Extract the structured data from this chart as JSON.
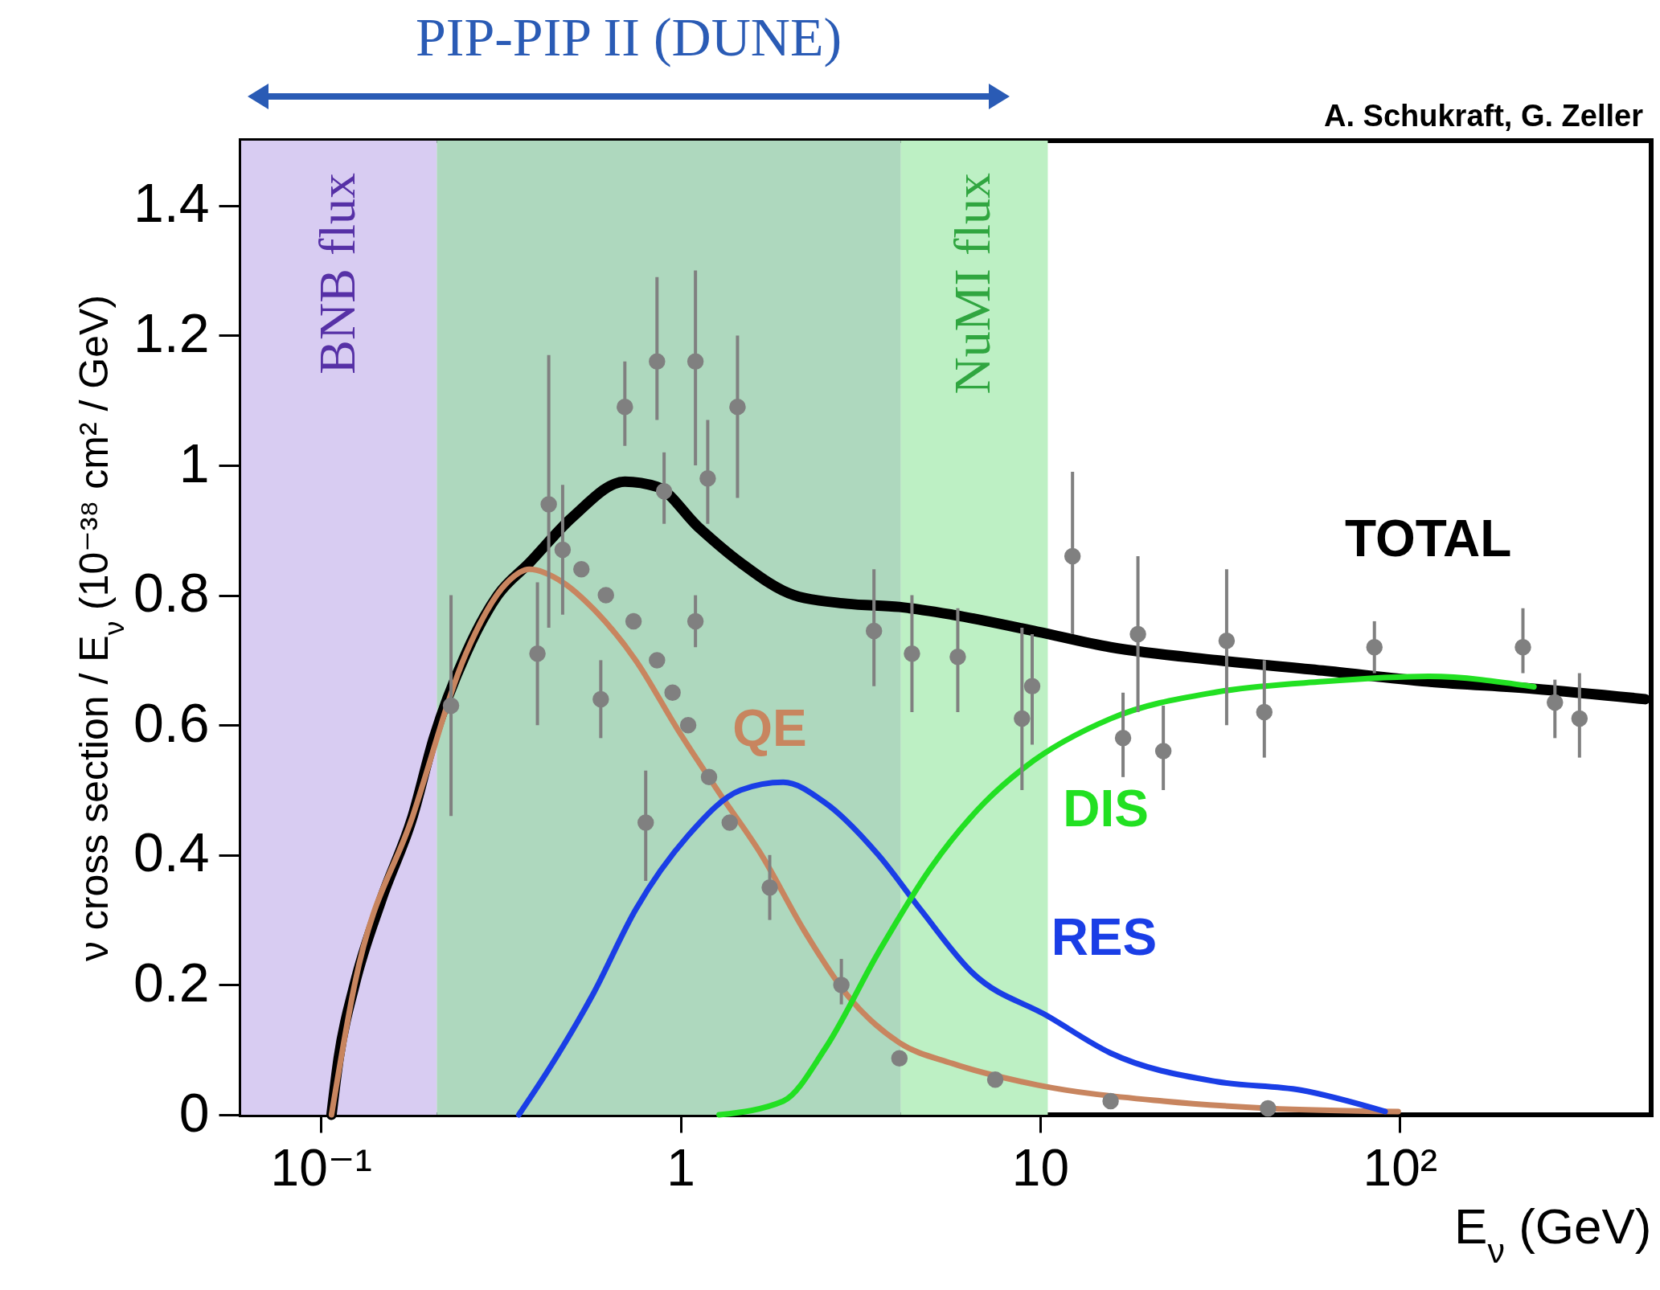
{
  "chart_data": {
    "type": "line",
    "xlabel": "E$_{ν}$ (GeV)",
    "ylabel": "ν cross section / E$_{ν}$ (10⁻³⁸ cm² / GeV)",
    "log": "x",
    "xlim": [
      0.06,
      500
    ],
    "xticks": [
      {
        "value": 0.1,
        "label": "10⁻¹"
      },
      1,
      10,
      {
        "value": 100,
        "label": "10²"
      }
    ],
    "ylim": [
      0,
      1.5
    ],
    "yticks": [
      0,
      0.2,
      0.4,
      0.6,
      0.8,
      1,
      1.2,
      1.4
    ],
    "annotations": [
      "A. Schukraft, G. Zeller",
      "PIP-PIP II (DUNE)"
    ],
    "bands": [
      {
        "axis": "x",
        "from": 0.06,
        "to": 0.21,
        "label": "BNB flux",
        "color": "#d8ccf2"
      },
      {
        "axis": "x",
        "from": 0.21,
        "to": 4.1,
        "label": null,
        "color": "#aed8be"
      },
      {
        "axis": "x",
        "from": 4.1,
        "to": 10.5,
        "label": "NuMI flux",
        "color": "#bdf0c4"
      }
    ],
    "series": [
      {
        "name": "TOTAL",
        "color": "#000000",
        "x": [
          0.107,
          0.112,
          0.124,
          0.147,
          0.18,
          0.206,
          0.253,
          0.31,
          0.38,
          0.5,
          0.7,
          0.86,
          1.12,
          1.47,
          2.07,
          2.9,
          4.06,
          5.7,
          9.8,
          15.7,
          31,
          61,
          120,
          236,
          481
        ],
        "values": [
          0,
          0.087,
          0.2,
          0.33,
          0.46,
          0.58,
          0.71,
          0.8,
          0.85,
          0.92,
          0.975,
          0.967,
          0.905,
          0.85,
          0.8,
          0.787,
          0.782,
          0.77,
          0.744,
          0.72,
          0.7,
          0.684,
          0.667,
          0.656,
          0.64
        ]
      },
      {
        "name": "QE",
        "color": "#c8855f",
        "x": [
          0.107,
          0.124,
          0.18,
          0.253,
          0.33,
          0.38,
          0.47,
          0.57,
          0.75,
          0.98,
          1.28,
          1.68,
          2.21,
          2.9,
          4.06,
          5.7,
          9.8,
          22,
          43,
          99
        ],
        "values": [
          0,
          0.2,
          0.46,
          0.71,
          0.82,
          0.84,
          0.82,
          0.78,
          0.7,
          0.594,
          0.496,
          0.4,
          0.283,
          0.185,
          0.111,
          0.079,
          0.046,
          0.021,
          0.01,
          0.005
        ]
      },
      {
        "name": "RES",
        "color": "#1a3ee6",
        "x": [
          0.355,
          0.43,
          0.57,
          0.75,
          1.05,
          1.47,
          1.93,
          2.53,
          3.55,
          4.65,
          6.5,
          10.5,
          15.7,
          31,
          53,
          91
        ],
        "values": [
          0,
          0.07,
          0.185,
          0.316,
          0.43,
          0.5,
          0.512,
          0.48,
          0.4,
          0.316,
          0.218,
          0.152,
          0.095,
          0.051,
          0.038,
          0.005
        ]
      },
      {
        "name": "DIS",
        "color": "#22e022",
        "x": [
          1.28,
          1.93,
          2.53,
          3.55,
          4.96,
          6.98,
          9.1,
          15.7,
          31,
          61,
          120,
          236
        ],
        "values": [
          0,
          0.021,
          0.103,
          0.25,
          0.38,
          0.48,
          0.536,
          0.61,
          0.651,
          0.667,
          0.675,
          0.659
        ]
      },
      {
        "color": "#808080",
        "type": "scatter",
        "marker": "circle",
        "x": [
          0.23,
          0.43,
          0.47,
          0.53,
          0.62,
          0.74,
          0.86,
          0.95,
          1.05,
          1.2,
          1.37,
          1.77,
          0.7,
          0.9,
          1.19,
          0.86,
          1.1,
          1.44,
          1.1,
          3.45,
          4.4,
          5.9,
          8.9,
          9.5,
          12.3,
          18.7,
          33,
          42,
          22,
          17,
          85,
          220,
          316,
          270,
          0.8,
          0.6,
          0.4,
          2.8,
          4.06,
          7.5,
          15.7,
          43
        ],
        "values": [
          0.63,
          0.94,
          0.87,
          0.84,
          0.8,
          0.76,
          0.7,
          0.65,
          0.6,
          0.52,
          0.45,
          0.35,
          1.09,
          0.96,
          0.98,
          1.16,
          1.16,
          1.09,
          0.76,
          0.745,
          0.71,
          0.705,
          0.61,
          0.66,
          0.86,
          0.74,
          0.73,
          0.62,
          0.56,
          0.58,
          0.72,
          0.72,
          0.61,
          0.635,
          0.45,
          0.64,
          0.71,
          0.2,
          0.087,
          0.054,
          0.021,
          0.01
        ],
        "errors": [
          [
            0.46,
            0.8
          ],
          [
            0.75,
            1.17
          ],
          [
            0.77,
            0.97
          ],
          null,
          null,
          null,
          null,
          null,
          null,
          null,
          null,
          [
            0.3,
            0.4
          ],
          [
            1.03,
            1.16
          ],
          [
            0.91,
            1.02
          ],
          [
            0.91,
            1.07
          ],
          [
            1.07,
            1.29
          ],
          [
            1.0,
            1.3
          ],
          [
            0.95,
            1.2
          ],
          [
            0.72,
            0.8
          ],
          [
            0.66,
            0.84
          ],
          [
            0.62,
            0.8
          ],
          [
            0.62,
            0.78
          ],
          [
            0.5,
            0.75
          ],
          [
            0.57,
            0.74
          ],
          [
            0.74,
            0.99
          ],
          [
            0.62,
            0.86
          ],
          [
            0.6,
            0.84
          ],
          [
            0.55,
            0.7
          ],
          [
            0.5,
            0.63
          ],
          [
            0.52,
            0.65
          ],
          [
            0.68,
            0.76
          ],
          [
            0.68,
            0.78
          ],
          [
            0.55,
            0.68
          ],
          [
            0.58,
            0.67
          ],
          [
            0.36,
            0.53
          ],
          [
            0.58,
            0.7
          ],
          [
            0.6,
            0.82
          ],
          [
            0.17,
            0.24
          ],
          null,
          null,
          null,
          null
        ]
      }
    ]
  }
}
